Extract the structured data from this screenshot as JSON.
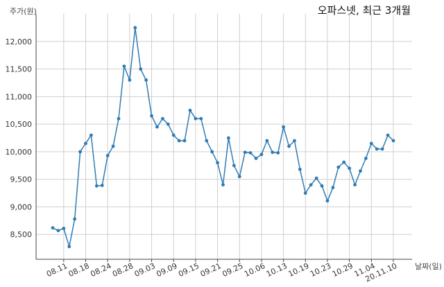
{
  "chart_data": {
    "type": "line",
    "title": "오파스넷, 최근 3개월",
    "ylabel": "주가(원)",
    "xlabel": "날짜(일)",
    "ylim": [
      8050,
      12500
    ],
    "y_ticks": [
      8500,
      9000,
      9500,
      10000,
      10500,
      11000,
      11500,
      12000
    ],
    "y_tick_labels": [
      "8,500",
      "9,000",
      "9,500",
      "10,000",
      "10,500",
      "11,000",
      "11,500",
      "12,000"
    ],
    "x_ticks": [
      {
        "index": 2,
        "label": "08.11"
      },
      {
        "index": 6,
        "label": "08.18"
      },
      {
        "index": 10,
        "label": "08.24"
      },
      {
        "index": 14,
        "label": "08.28"
      },
      {
        "index": 18,
        "label": "09.03"
      },
      {
        "index": 22,
        "label": "09.09"
      },
      {
        "index": 26,
        "label": "09.15"
      },
      {
        "index": 30,
        "label": "09.21"
      },
      {
        "index": 34,
        "label": "09.25"
      },
      {
        "index": 38,
        "label": "10.06"
      },
      {
        "index": 42,
        "label": "10.13"
      },
      {
        "index": 46,
        "label": "10.19"
      },
      {
        "index": 50,
        "label": "10.23"
      },
      {
        "index": 54,
        "label": "10.29"
      },
      {
        "index": 58,
        "label": "11.04"
      },
      {
        "index": 62,
        "label": "20.11.10"
      }
    ],
    "grid": true,
    "color": "#2e7bb4",
    "series": [
      {
        "values": [
          8620,
          8570,
          8610,
          8280,
          8780,
          10000,
          10150,
          10300,
          9380,
          9390,
          9930,
          10100,
          10600,
          11550,
          11300,
          12250,
          11500,
          11300,
          10650,
          10450,
          10600,
          10500,
          10300,
          10200,
          10200,
          10750,
          10600,
          10600,
          10200,
          10000,
          9800,
          9400,
          10250,
          9750,
          9550,
          9990,
          9980,
          9880,
          9950,
          10200,
          9990,
          9980,
          10450,
          10100,
          10200,
          9680,
          9250,
          9400,
          9520,
          9380,
          9110,
          9350,
          9720,
          9810,
          9700,
          9400,
          9650,
          9880,
          10150,
          10050,
          10050,
          10300,
          10200
        ]
      }
    ]
  }
}
